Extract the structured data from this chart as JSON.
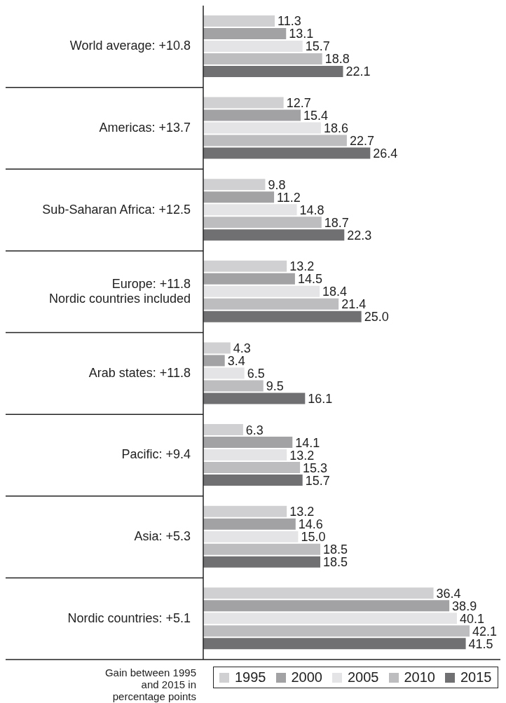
{
  "chart_data": {
    "type": "bar",
    "orientation": "horizontal",
    "relative": false,
    "data_labels": true,
    "legend": "bottom right",
    "categories": [
      "World average: +10.8",
      "Americas: +13.7",
      "Sub-Saharan Africa: +12.5",
      "Europe: +11.8\nNordic countries included",
      "Arab states: +11.8",
      "Pacific: +9.4",
      "Asia: +5.3",
      "Nordic countries: +5.1"
    ],
    "series": [
      {
        "name": "1995",
        "color": "#d0d0d2",
        "values": [
          11.3,
          12.7,
          9.8,
          13.2,
          4.3,
          6.3,
          13.2,
          36.4
        ]
      },
      {
        "name": "2000",
        "color": "#a2a2a5",
        "values": [
          13.1,
          15.4,
          11.2,
          14.5,
          3.4,
          14.1,
          14.6,
          38.9
        ]
      },
      {
        "name": "2005",
        "color": "#e4e4e6",
        "values": [
          15.7,
          18.6,
          14.8,
          18.4,
          6.5,
          13.2,
          15.0,
          40.1
        ],
        "value_labels": [
          "15.7",
          "18.6",
          "14.8",
          "18.4",
          "6.5",
          "13.2",
          "15.0",
          "40.1"
        ]
      },
      {
        "name": "2010",
        "color": "#bdbdc0",
        "values": [
          18.8,
          22.7,
          18.7,
          21.4,
          9.5,
          15.3,
          18.5,
          42.1
        ]
      },
      {
        "name": "2015",
        "color": "#707072",
        "values": [
          22.1,
          26.4,
          22.3,
          25.0,
          16.1,
          15.7,
          18.5,
          41.5
        ],
        "value_labels": [
          "22.1",
          "26.4",
          "22.3",
          "25.0",
          "16.1",
          "15.7",
          "18.5",
          "41.5"
        ]
      }
    ],
    "annotations": [
      "Gain between 1995\nand 2015 in\npercentage points"
    ]
  }
}
